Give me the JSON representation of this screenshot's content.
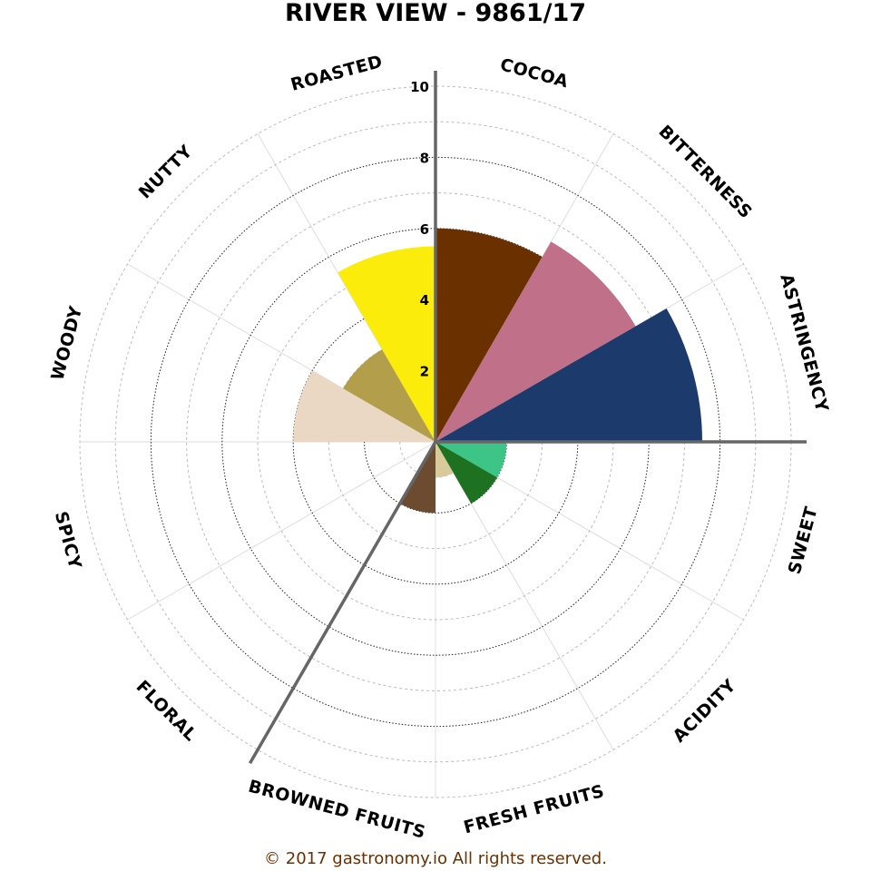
{
  "chart_data": {
    "type": "polar-bar",
    "title": "RIVER VIEW - 9861/17",
    "categories": [
      "COCOA",
      "BITTERNESS",
      "ASTRINGENCY",
      "SWEET",
      "ACIDITY",
      "FRESH FRUITS",
      "BROWNED FRUITS",
      "FLORAL",
      "SPICY",
      "WOODY",
      "NUTTY",
      "ROASTED"
    ],
    "values": [
      6,
      6.5,
      7.5,
      2,
      2,
      1,
      2,
      0,
      0,
      4,
      3,
      5.5
    ],
    "colors": [
      "#6b3000",
      "#c07088",
      "#1c3a6c",
      "#3cc587",
      "#1e7120",
      "#d9ca9c",
      "#6c4b31",
      "#f2a7c4",
      "#c62828",
      "#ead8c4",
      "#b39f4b",
      "#fcec0c"
    ],
    "r_ticks": [
      2,
      4,
      6,
      8,
      10
    ],
    "r_tick_labels": [
      "2",
      "4",
      "6",
      "8",
      "10"
    ],
    "rlim": [
      0,
      10
    ],
    "grid": true,
    "axis_spokes": [
      0,
      90,
      210
    ]
  },
  "footer": "© 2017 gastronomy.io All rights reserved.",
  "footer_color": "#6b3000"
}
